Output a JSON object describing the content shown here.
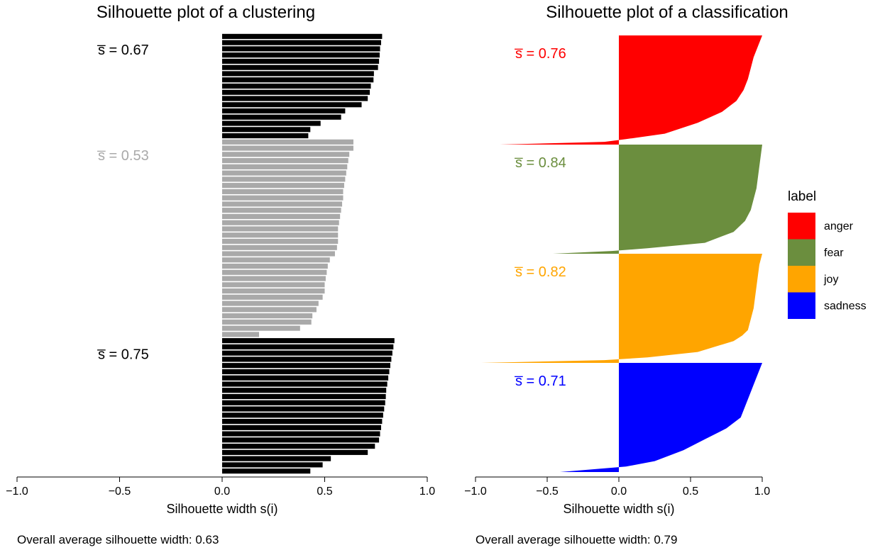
{
  "chart_data": [
    {
      "type": "bar",
      "orientation": "horizontal",
      "title": "Silhouette plot of a clustering",
      "xlabel": "Silhouette width s(i)",
      "xlim": [
        -1.0,
        1.0
      ],
      "xticks": [
        "−1.0",
        "−0.5",
        "0.0",
        "0.5",
        "1.0"
      ],
      "xtick_values": [
        -1.0,
        -0.5,
        0.0,
        0.5,
        1.0
      ],
      "grid": false,
      "footer": "Overall average silhouette width: 0.63",
      "clusters": [
        {
          "color": "#000000",
          "avg_label": "s̅ = 0.67",
          "avg": 0.67,
          "values": [
            0.78,
            0.775,
            0.77,
            0.768,
            0.765,
            0.76,
            0.74,
            0.738,
            0.725,
            0.72,
            0.71,
            0.68,
            0.6,
            0.58,
            0.48,
            0.43,
            0.42
          ]
        },
        {
          "color": "#A9A9A9",
          "avg_label": "s̅ = 0.53",
          "avg": 0.53,
          "values": [
            0.64,
            0.64,
            0.62,
            0.615,
            0.61,
            0.605,
            0.6,
            0.595,
            0.59,
            0.59,
            0.585,
            0.58,
            0.575,
            0.57,
            0.565,
            0.565,
            0.565,
            0.56,
            0.55,
            0.525,
            0.515,
            0.51,
            0.505,
            0.5,
            0.5,
            0.49,
            0.47,
            0.46,
            0.44,
            0.435,
            0.38,
            0.18
          ]
        },
        {
          "color": "#000000",
          "avg_label": "s̅ = 0.75",
          "avg": 0.75,
          "values": [
            0.84,
            0.835,
            0.83,
            0.825,
            0.82,
            0.815,
            0.81,
            0.805,
            0.8,
            0.798,
            0.795,
            0.79,
            0.785,
            0.78,
            0.775,
            0.77,
            0.765,
            0.745,
            0.71,
            0.53,
            0.49,
            0.43
          ]
        }
      ]
    },
    {
      "type": "area",
      "orientation": "horizontal",
      "title": "Silhouette plot of a classification",
      "xlabel": "Silhouette width s(i)",
      "xlim": [
        -1.0,
        1.0
      ],
      "xticks": [
        "−1.0",
        "−0.5",
        "0.0",
        "0.5",
        "1.0"
      ],
      "xtick_values": [
        -1.0,
        -0.5,
        0.0,
        0.5,
        1.0
      ],
      "grid": false,
      "footer": "Overall average silhouette width: 0.79",
      "legend": {
        "title": "label",
        "position": "right"
      },
      "series": [
        {
          "name": "anger",
          "color": "#FF0000",
          "avg_label": "s̅ = 0.76",
          "avg": 0.76,
          "profile": [
            [
              0,
              1.0
            ],
            [
              0.1,
              0.97
            ],
            [
              0.2,
              0.94
            ],
            [
              0.3,
              0.92
            ],
            [
              0.4,
              0.9
            ],
            [
              0.5,
              0.87
            ],
            [
              0.6,
              0.82
            ],
            [
              0.7,
              0.72
            ],
            [
              0.8,
              0.55
            ],
            [
              0.9,
              0.32
            ],
            [
              0.95,
              0.05
            ],
            [
              0.975,
              -0.1
            ],
            [
              1.0,
              -0.83
            ]
          ]
        },
        {
          "name": "fear",
          "color": "#6B8E3E",
          "avg_label": "s̅ = 0.84",
          "avg": 0.84,
          "profile": [
            [
              0,
              1.0
            ],
            [
              0.1,
              0.99
            ],
            [
              0.2,
              0.98
            ],
            [
              0.3,
              0.97
            ],
            [
              0.4,
              0.96
            ],
            [
              0.5,
              0.94
            ],
            [
              0.6,
              0.92
            ],
            [
              0.7,
              0.88
            ],
            [
              0.8,
              0.8
            ],
            [
              0.9,
              0.6
            ],
            [
              0.95,
              0.2
            ],
            [
              0.975,
              -0.05
            ],
            [
              1.0,
              -0.46
            ]
          ]
        },
        {
          "name": "joy",
          "color": "#FFA500",
          "avg_label": "s̅ = 0.82",
          "avg": 0.82,
          "profile": [
            [
              0,
              1.0
            ],
            [
              0.1,
              0.98
            ],
            [
              0.2,
              0.97
            ],
            [
              0.3,
              0.96
            ],
            [
              0.4,
              0.95
            ],
            [
              0.5,
              0.94
            ],
            [
              0.6,
              0.92
            ],
            [
              0.7,
              0.9
            ],
            [
              0.75,
              0.86
            ],
            [
              0.8,
              0.8
            ],
            [
              0.9,
              0.55
            ],
            [
              0.95,
              0.2
            ],
            [
              0.975,
              -0.1
            ],
            [
              1.0,
              -0.96
            ]
          ]
        },
        {
          "name": "sadness",
          "color": "#0000FF",
          "avg_label": "s̅ = 0.71",
          "avg": 0.71,
          "profile": [
            [
              0,
              1.0
            ],
            [
              0.1,
              0.97
            ],
            [
              0.2,
              0.94
            ],
            [
              0.3,
              0.91
            ],
            [
              0.4,
              0.88
            ],
            [
              0.5,
              0.85
            ],
            [
              0.6,
              0.75
            ],
            [
              0.7,
              0.6
            ],
            [
              0.8,
              0.45
            ],
            [
              0.9,
              0.25
            ],
            [
              0.95,
              0.05
            ],
            [
              1.0,
              -0.41
            ]
          ]
        }
      ]
    }
  ]
}
